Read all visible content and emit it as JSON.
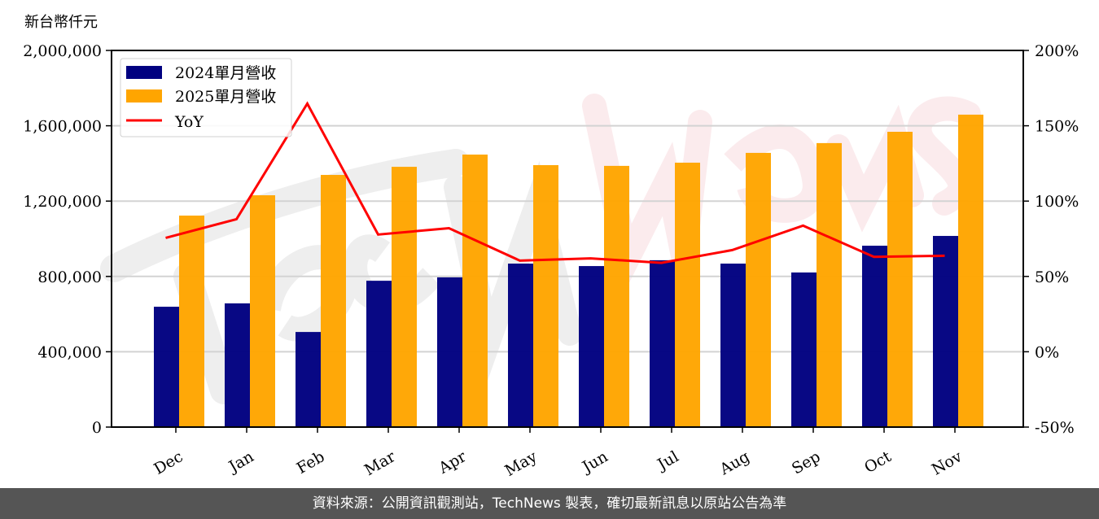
{
  "chart_data": {
    "type": "bar",
    "title": "",
    "unit_label": "新台幣仟元",
    "xlabel": "",
    "ylabel": "新台幣仟元",
    "ylim": [
      0,
      2000000
    ],
    "y2lim": [
      -50,
      200
    ],
    "grid": true,
    "legend_position": "upper left",
    "categories": [
      "Dec",
      "Jan",
      "Feb",
      "Mar",
      "Apr",
      "May",
      "Jun",
      "Jul",
      "Aug",
      "Sep",
      "Oct",
      "Nov"
    ],
    "y_ticks": [
      "0",
      "400,000",
      "800,000",
      "1,200,000",
      "1,600,000",
      "2,000,000"
    ],
    "y2_ticks": [
      "-50%",
      "0%",
      "50%",
      "100%",
      "150%",
      "200%"
    ],
    "series": [
      {
        "name": "2024單月營收",
        "type": "bar",
        "color": "#000080",
        "axis": "left",
        "values": [
          639000,
          657000,
          505000,
          777000,
          795000,
          868000,
          855000,
          886000,
          868000,
          821000,
          963000,
          1015000
        ]
      },
      {
        "name": "2025單月營收",
        "type": "bar",
        "color": "#FFA500",
        "axis": "left",
        "values": [
          1123000,
          1231000,
          1339000,
          1382000,
          1447000,
          1391000,
          1387000,
          1404000,
          1456000,
          1508000,
          1568000,
          1659000
        ]
      },
      {
        "name": "YoY",
        "type": "line",
        "color": "#FF0000",
        "axis": "right",
        "values": [
          75.6,
          88.0,
          164.7,
          77.8,
          82.0,
          60.5,
          62.0,
          59.0,
          67.5,
          83.7,
          63.0,
          63.7
        ]
      }
    ]
  },
  "watermark": "TechNews",
  "footer": {
    "text": "資料來源：公開資訊觀測站，TechNews 製表，確切最新訊息以原站公告為準"
  }
}
